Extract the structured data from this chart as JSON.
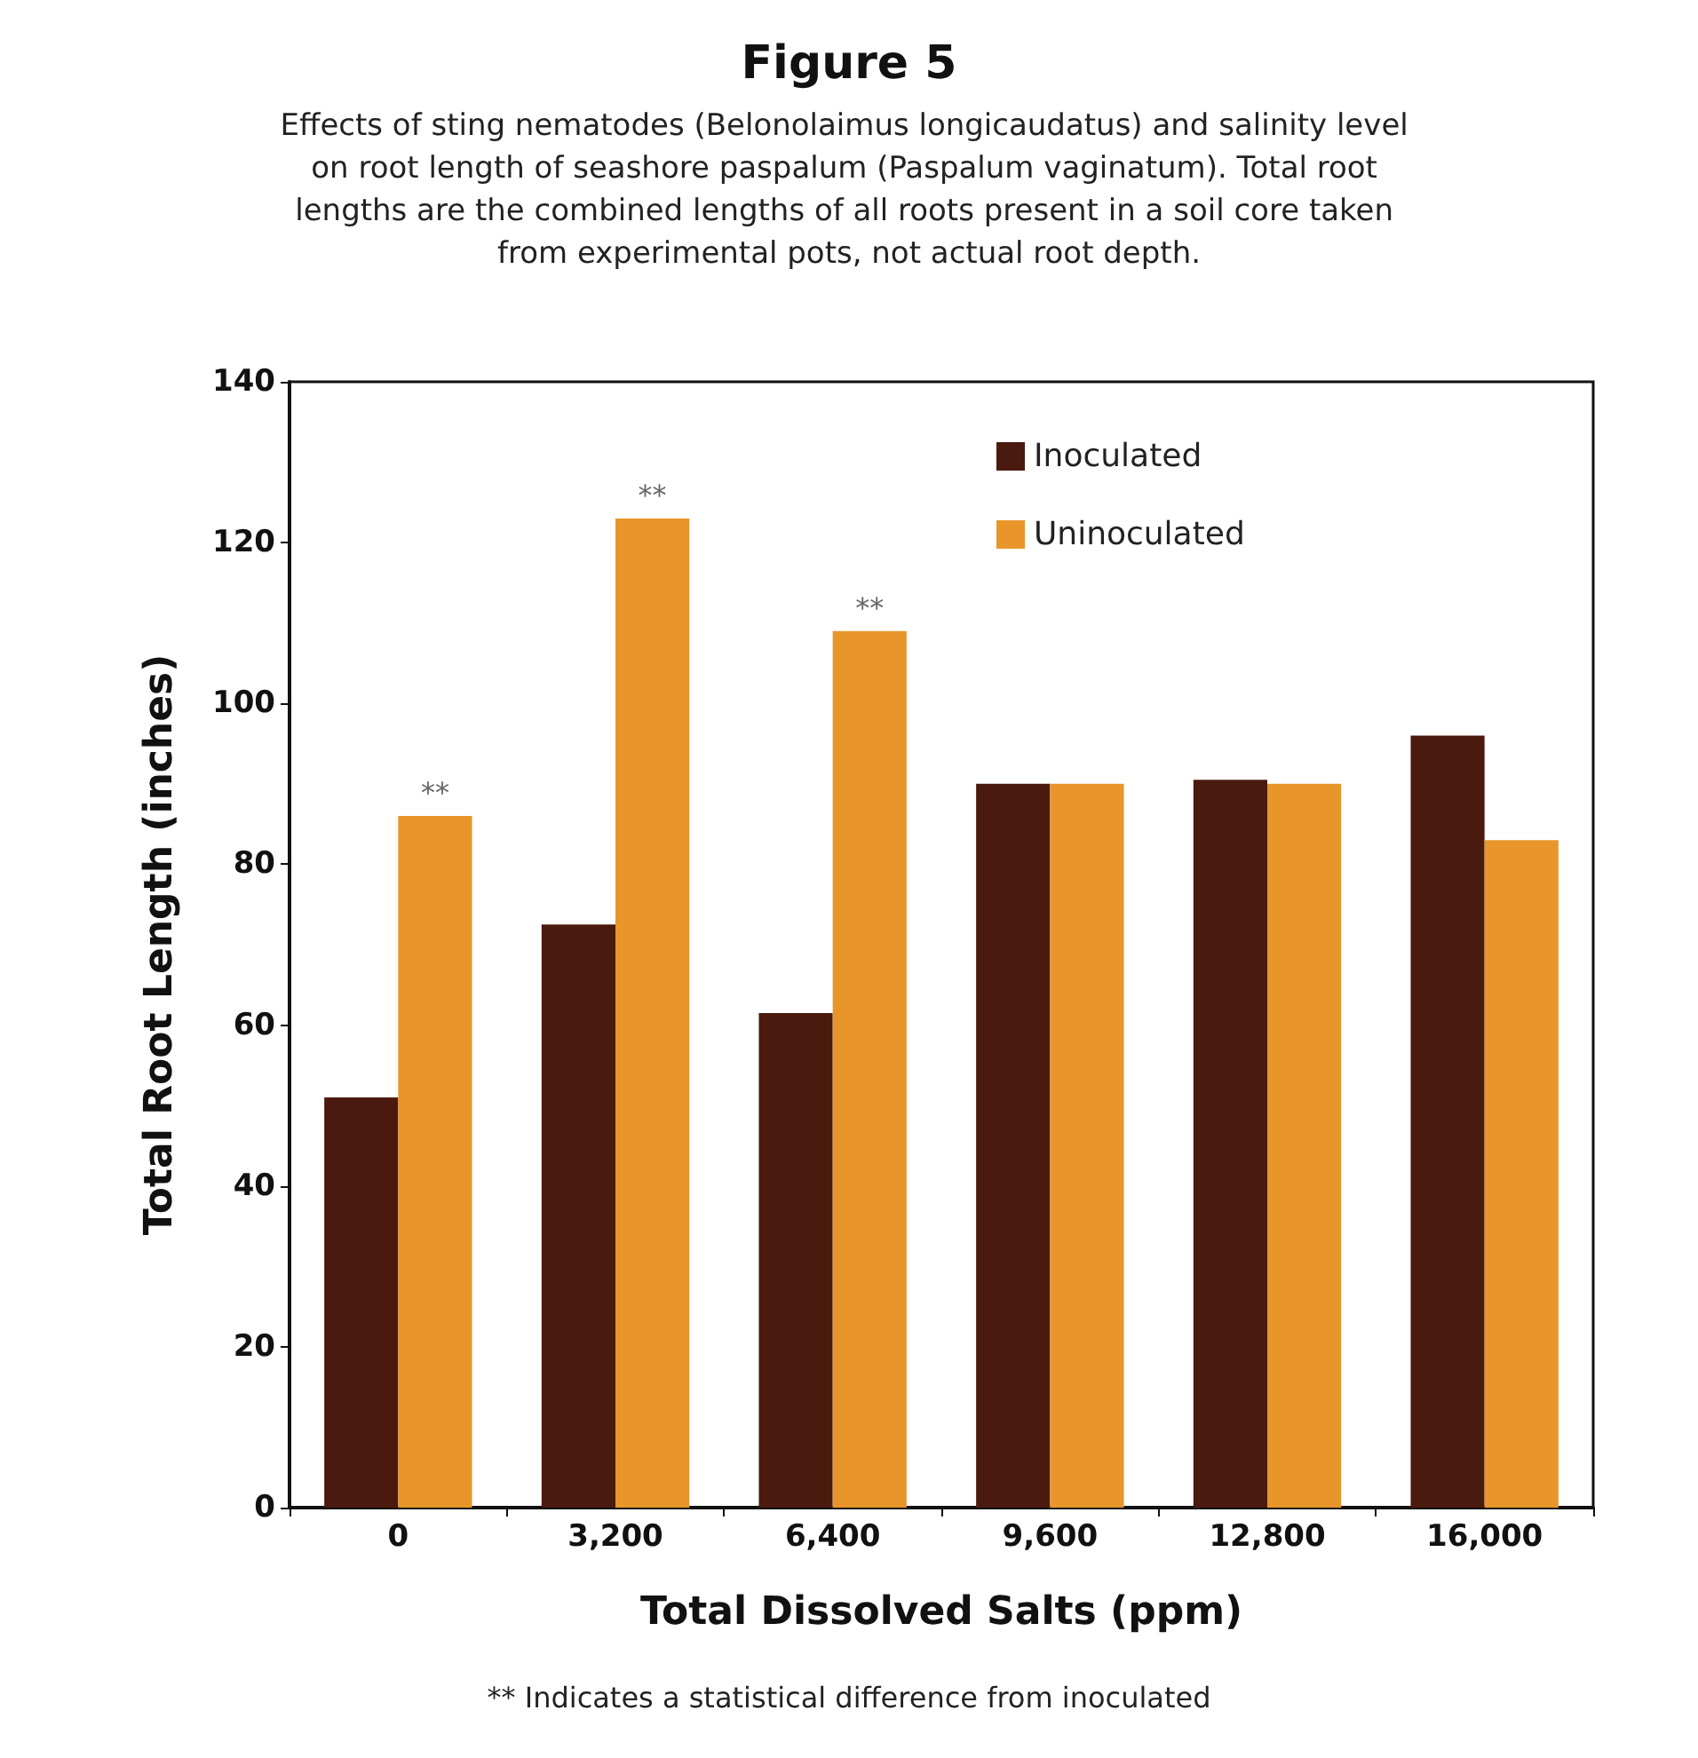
{
  "chart_data": {
    "type": "bar",
    "title": "Figure 5",
    "subtitle": "Effects of sting nematodes (Belonolaimus longicaudatus) and salinity level on root length of seashore paspalum (Paspalum vaginatum). Total root lengths are the combined lengths of all roots present in a soil core taken from experimental pots, not actual root depth.",
    "xlabel": "Total Dissolved Salts (ppm)",
    "ylabel": "Total Root Length (inches)",
    "categories": [
      "0",
      "3,200",
      "6,400",
      "9,600",
      "12,800",
      "16,000"
    ],
    "series": [
      {
        "name": "Inoculated",
        "color": "#4a1a0e",
        "values": [
          51,
          72.5,
          61.5,
          90,
          90.5,
          96
        ]
      },
      {
        "name": "Uninoculated",
        "color": "#e8962a",
        "values": [
          86,
          123,
          109,
          90,
          90,
          83
        ]
      }
    ],
    "ylim": [
      0,
      140
    ],
    "yticks": [
      0,
      20,
      40,
      60,
      80,
      100,
      120,
      140
    ],
    "grid": false,
    "legend": "top right",
    "annotations": [
      {
        "text": "**",
        "x": "0",
        "y": 86
      },
      {
        "text": "**",
        "x": "3,200",
        "y": 123
      },
      {
        "text": "**",
        "x": "6,400",
        "y": 109
      },
      "** Indicates a statistical difference from inoculated"
    ]
  }
}
